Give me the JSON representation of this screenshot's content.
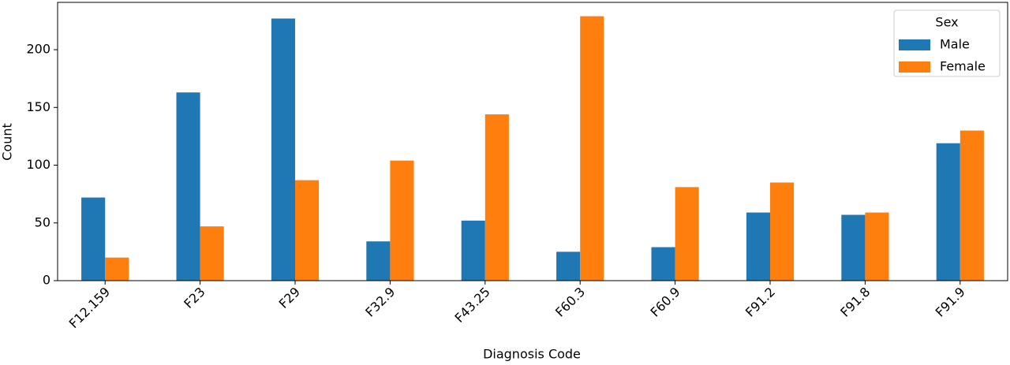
{
  "chart_data": {
    "type": "bar",
    "x_label": "Diagnosis Code",
    "y_label": "Count",
    "categories": [
      "F12.159",
      "F23",
      "F29",
      "F32.9",
      "F43.25",
      "F60.3",
      "F60.9",
      "F91.2",
      "F91.8",
      "F91.9"
    ],
    "series": [
      {
        "name": "Male",
        "color": "#1f77b4",
        "values": [
          72,
          163,
          227,
          34,
          52,
          25,
          29,
          59,
          57,
          119
        ]
      },
      {
        "name": "Female",
        "color": "#ff7f0e",
        "values": [
          20,
          47,
          87,
          104,
          144,
          229,
          81,
          85,
          59,
          130
        ]
      }
    ],
    "ylim": [
      0,
      241
    ],
    "yticks": [
      0,
      50,
      100,
      150,
      200
    ],
    "legend_title": "Sex",
    "legend": "upper right",
    "grid": false
  }
}
